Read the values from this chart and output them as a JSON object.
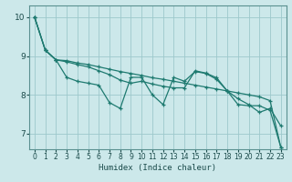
{
  "xlabel": "Humidex (Indice chaleur)",
  "bg_color": "#cce8ea",
  "grid_color": "#9dc8cc",
  "line_color": "#1e7a70",
  "spine_color": "#5a9090",
  "xlim": [
    -0.5,
    23.5
  ],
  "ylim": [
    6.6,
    10.3
  ],
  "yticks": [
    7,
    8,
    9,
    10
  ],
  "xticks": [
    0,
    1,
    2,
    3,
    4,
    5,
    6,
    7,
    8,
    9,
    10,
    11,
    12,
    13,
    14,
    15,
    16,
    17,
    18,
    19,
    20,
    21,
    22,
    23
  ],
  "line1_x": [
    0,
    1,
    2,
    3,
    4,
    5,
    6,
    7,
    8,
    9,
    10,
    11,
    12,
    13,
    14,
    15,
    16,
    17,
    18,
    19,
    20,
    21,
    22,
    23
  ],
  "line1_y": [
    10.0,
    9.15,
    8.9,
    8.45,
    8.35,
    8.3,
    8.25,
    7.8,
    7.65,
    8.45,
    8.45,
    8.0,
    7.75,
    8.45,
    8.35,
    8.6,
    8.55,
    8.4,
    8.1,
    7.9,
    7.75,
    7.55,
    7.65,
    7.2
  ],
  "line2_x": [
    0,
    1,
    2,
    3,
    4,
    5,
    6,
    7,
    8,
    9,
    10,
    11,
    12,
    13,
    14,
    15,
    16,
    17,
    18,
    19,
    20,
    21,
    22,
    23
  ],
  "line2_y": [
    10.0,
    9.15,
    8.9,
    8.88,
    8.82,
    8.78,
    8.72,
    8.66,
    8.6,
    8.55,
    8.5,
    8.44,
    8.4,
    8.35,
    8.3,
    8.25,
    8.2,
    8.15,
    8.1,
    8.05,
    8.0,
    7.95,
    7.85,
    6.65
  ],
  "line3_x": [
    0,
    1,
    2,
    3,
    4,
    5,
    6,
    7,
    8,
    9,
    10,
    11,
    12,
    13,
    14,
    15,
    16,
    17,
    18,
    19,
    20,
    21,
    22,
    23
  ],
  "line3_y": [
    10.0,
    9.15,
    8.9,
    8.85,
    8.78,
    8.72,
    8.62,
    8.52,
    8.38,
    8.3,
    8.35,
    8.28,
    8.22,
    8.18,
    8.18,
    8.62,
    8.56,
    8.44,
    8.1,
    7.75,
    7.72,
    7.72,
    7.6,
    6.65
  ]
}
